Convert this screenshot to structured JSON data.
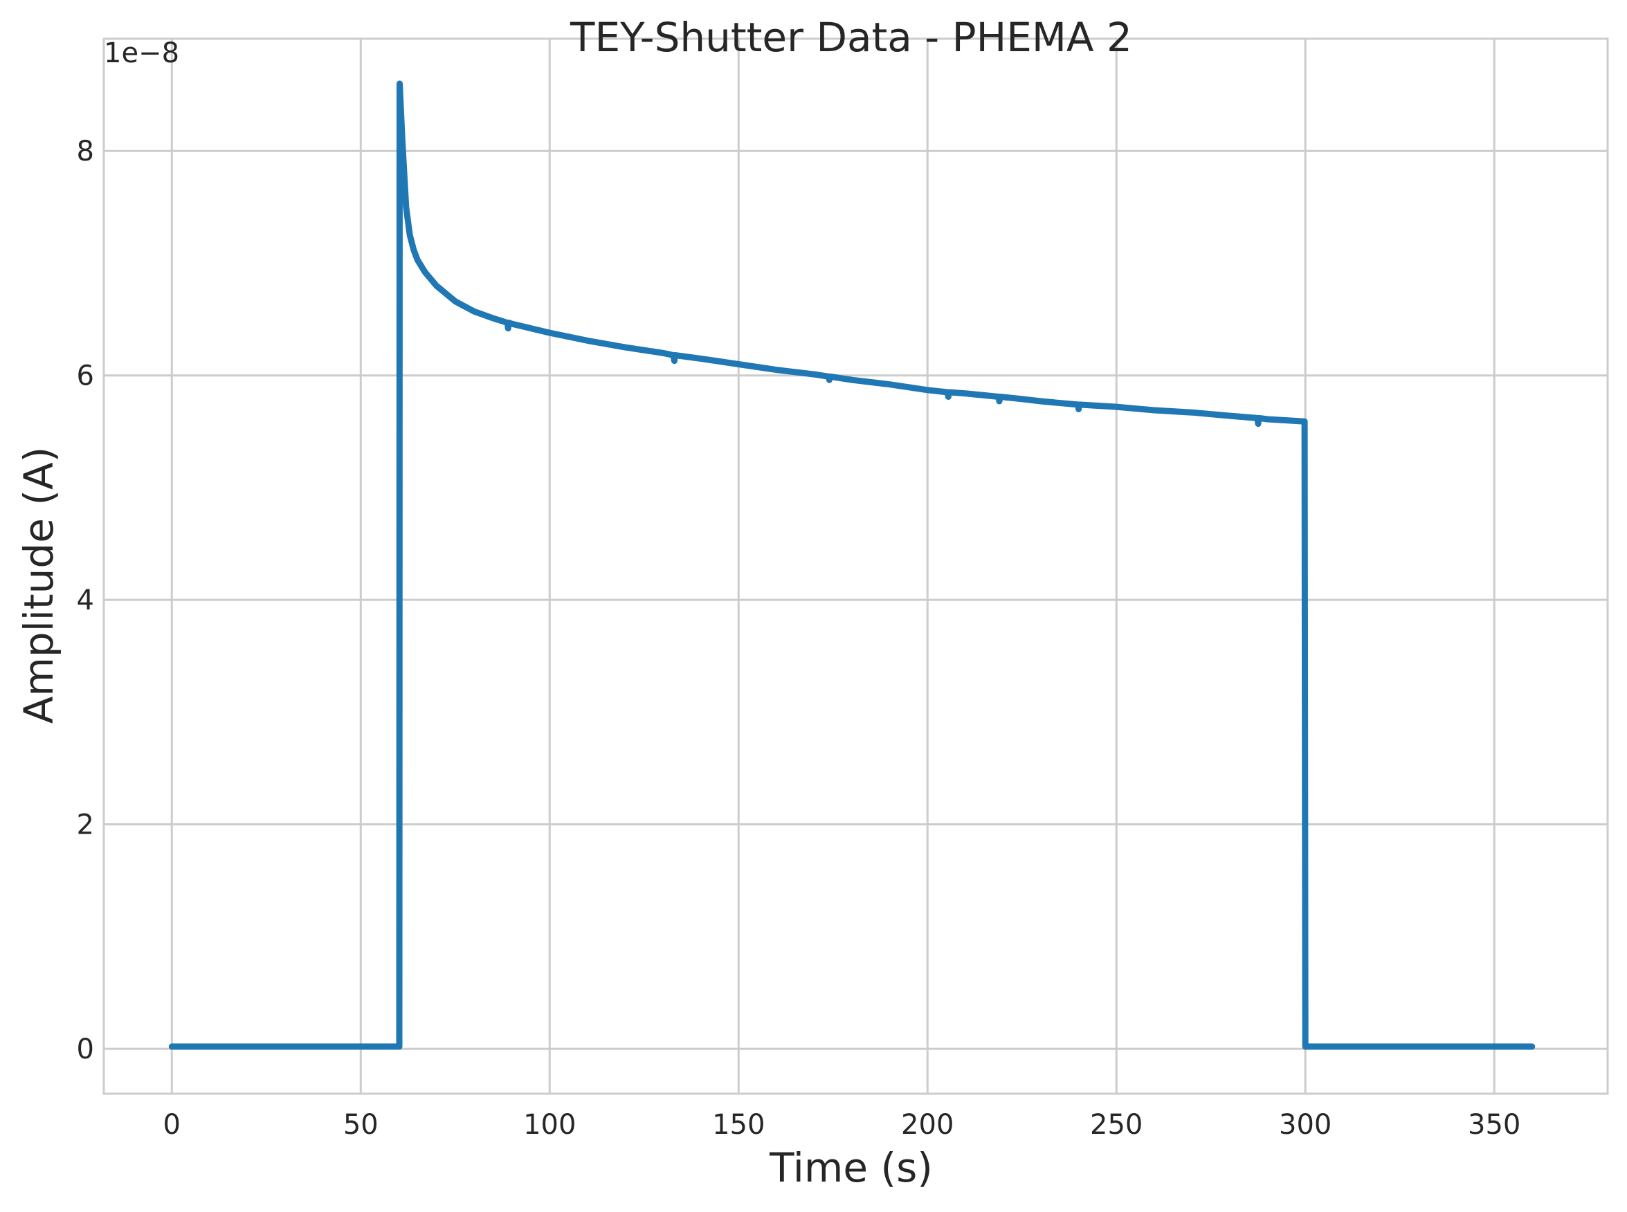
{
  "chart_data": {
    "type": "line",
    "title": "TEY-Shutter Data - PHEMA 2",
    "xlabel": "Time (s)",
    "ylabel": "Amplitude (A)",
    "y_offset_label": "1e−8",
    "xlim": [
      -18,
      380
    ],
    "ylim": [
      -0.4,
      9.0
    ],
    "x_ticks": [
      0,
      50,
      100,
      150,
      200,
      250,
      300,
      350
    ],
    "x_tick_labels": [
      "0",
      "50",
      "100",
      "150",
      "200",
      "250",
      "300",
      "350"
    ],
    "y_ticks": [
      0,
      2,
      4,
      6,
      8
    ],
    "y_tick_labels": [
      "0",
      "2",
      "4",
      "6",
      "8"
    ],
    "grid": true,
    "legend": "none",
    "series": [
      {
        "color": "#1f77b4",
        "x": [
          0,
          10,
          20,
          30,
          40,
          50,
          60,
          60.2,
          60.3,
          61,
          62,
          63,
          64,
          65,
          67,
          70,
          75,
          80,
          85,
          88.8,
          89,
          89.2,
          90,
          95,
          100,
          110,
          120,
          130,
          132.8,
          133,
          133.2,
          140,
          150,
          160,
          170,
          173.8,
          174,
          174.2,
          180,
          190,
          200,
          205.3,
          205.5,
          205.7,
          210,
          218.8,
          219,
          219.2,
          225,
          230,
          239.8,
          240,
          240.2,
          250,
          260,
          270,
          280,
          287.3,
          287.5,
          287.7,
          290,
          295,
          299.8,
          300,
          300.2,
          310,
          320,
          330,
          340,
          350,
          360
        ],
        "y": [
          0.02,
          0.02,
          0.02,
          0.02,
          0.02,
          0.02,
          0.02,
          0.02,
          8.6,
          8.1,
          7.5,
          7.25,
          7.12,
          7.03,
          6.92,
          6.8,
          6.66,
          6.57,
          6.51,
          6.47,
          6.42,
          6.47,
          6.46,
          6.42,
          6.38,
          6.31,
          6.25,
          6.2,
          6.18,
          6.13,
          6.18,
          6.15,
          6.1,
          6.05,
          6.01,
          5.99,
          5.96,
          5.99,
          5.96,
          5.92,
          5.87,
          5.85,
          5.81,
          5.85,
          5.84,
          5.81,
          5.77,
          5.81,
          5.79,
          5.77,
          5.74,
          5.7,
          5.74,
          5.72,
          5.69,
          5.67,
          5.64,
          5.62,
          5.57,
          5.62,
          5.61,
          5.6,
          5.59,
          0.02,
          0.02,
          0.02,
          0.02,
          0.02,
          0.02,
          0.02,
          0.02
        ]
      }
    ]
  }
}
